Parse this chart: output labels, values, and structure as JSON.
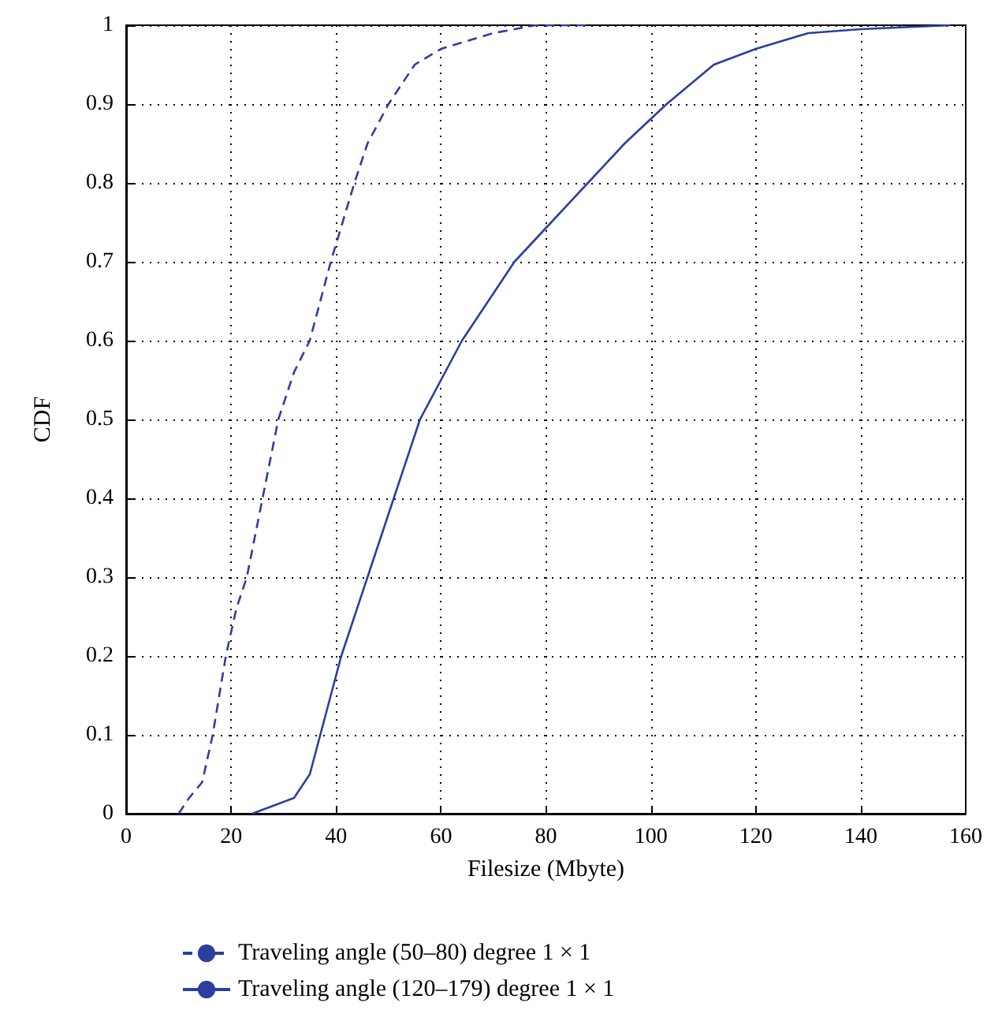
{
  "chart_data": {
    "type": "line",
    "xlabel": "Filesize (Mbyte)",
    "ylabel": "CDF",
    "xlim": [
      0,
      160
    ],
    "xticks": [
      0,
      20,
      40,
      60,
      80,
      100,
      120,
      140,
      160
    ],
    "ylim": [
      0,
      1
    ],
    "yticks": [
      0,
      0.1,
      0.2,
      0.3,
      0.4,
      0.5,
      0.6,
      0.7,
      0.8,
      0.9,
      1
    ],
    "grid": true,
    "legend": "bottom",
    "marker": "none",
    "series": [
      {
        "name": "Traveling angle (50–80) degree 1 × 1",
        "color": "#2b3f9e",
        "line_style": "dashed",
        "x": [
          10,
          12,
          14.5,
          16.5,
          19,
          21,
          23,
          26,
          29,
          32,
          35,
          39,
          43.5,
          46,
          50,
          55,
          60,
          70,
          78,
          88
        ],
        "values": [
          0,
          0.02,
          0.04,
          0.1,
          0.2,
          0.26,
          0.3,
          0.4,
          0.5,
          0.56,
          0.6,
          0.7,
          0.8,
          0.85,
          0.9,
          0.95,
          0.97,
          0.99,
          1,
          1
        ]
      },
      {
        "name": "Traveling angle (120–179) degree 1 × 1",
        "color": "#2b3f9e",
        "line_style": "solid",
        "x": [
          24,
          28,
          32,
          35,
          37,
          41,
          46,
          51,
          56,
          64,
          74,
          81,
          88,
          95,
          103,
          112,
          120,
          130,
          140,
          157
        ],
        "values": [
          0,
          0.01,
          0.02,
          0.05,
          0.1,
          0.2,
          0.3,
          0.4,
          0.5,
          0.6,
          0.7,
          0.75,
          0.8,
          0.85,
          0.9,
          0.95,
          0.97,
          0.99,
          0.995,
          1
        ]
      }
    ]
  }
}
